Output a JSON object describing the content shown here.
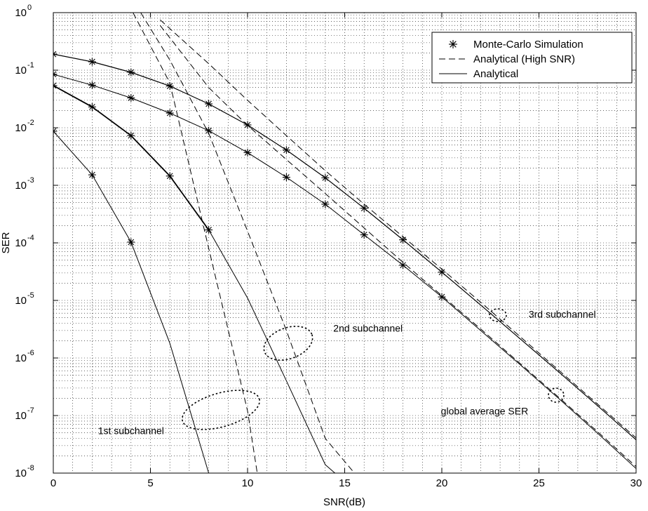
{
  "chart_data": {
    "type": "line",
    "xlabel": "SNR(dB)",
    "ylabel": "SER",
    "xlim": [
      0,
      30
    ],
    "ylim": [
      1e-08,
      1
    ],
    "yscale": "log",
    "grid": true,
    "legend_position": "top-right",
    "x_ticks": [
      0,
      5,
      10,
      15,
      20,
      25,
      30
    ],
    "x_tick_labels": [
      "0",
      "5",
      "10",
      "15",
      "20",
      "25",
      "30"
    ],
    "y_ticks": [
      1,
      0.1,
      0.01,
      0.001,
      0.0001,
      1e-05,
      1e-06,
      1e-07,
      1e-08
    ],
    "y_tick_labels": [
      {
        "base": "10",
        "exp": "0"
      },
      {
        "base": "10",
        "exp": "-1"
      },
      {
        "base": "10",
        "exp": "-2"
      },
      {
        "base": "10",
        "exp": "-3"
      },
      {
        "base": "10",
        "exp": "-4"
      },
      {
        "base": "10",
        "exp": "-5"
      },
      {
        "base": "10",
        "exp": "-6"
      },
      {
        "base": "10",
        "exp": "-7"
      },
      {
        "base": "10",
        "exp": "-8"
      }
    ],
    "legend": [
      {
        "label": "Monte-Carlo Simulation",
        "style": "marker-star"
      },
      {
        "label": "Analytical (High SNR)",
        "style": "dashed"
      },
      {
        "label": "Analytical",
        "style": "solid"
      }
    ],
    "annotations": [
      {
        "text": "1st subchannel",
        "x": 4,
        "y": 5.5e-08
      },
      {
        "text": "2nd subchannel",
        "x": 16.2,
        "y": 3.3e-06
      },
      {
        "text": "3rd subchannel",
        "x": 26.2,
        "y": 5.8e-06
      },
      {
        "text": "global average SER",
        "x": 22.2,
        "y": 1.2e-07
      }
    ],
    "series": [
      {
        "style": "solid",
        "width": 1.2,
        "x": [
          0,
          2,
          4,
          6,
          8,
          10,
          12,
          14,
          16,
          18,
          20,
          22,
          24,
          26,
          28,
          30
        ],
        "y": [
          0.19,
          0.14,
          0.092,
          0.053,
          0.026,
          0.0112,
          0.0041,
          0.00135,
          0.0004,
          0.000113,
          3.1e-05,
          8.3e-06,
          2.2e-06,
          5.8e-07,
          1.5e-07,
          3.8e-08
        ]
      },
      {
        "style": "solid",
        "width": 1,
        "x": [
          0,
          2,
          4,
          6,
          8,
          10,
          12,
          14,
          16,
          18,
          20,
          22,
          24,
          26,
          28,
          30
        ],
        "y": [
          0.085,
          0.055,
          0.033,
          0.018,
          0.0089,
          0.0037,
          0.00138,
          0.00047,
          0.000138,
          4.1e-05,
          1.15e-05,
          3e-06,
          7.8e-07,
          2e-07,
          5e-08,
          1.2e-08
        ]
      },
      {
        "style": "solid",
        "width": 1.8,
        "x": [
          0,
          2,
          4,
          6,
          8
        ],
        "y": [
          0.054,
          0.023,
          0.0073,
          0.00145,
          0.000168
        ]
      },
      {
        "style": "solid",
        "width": 1,
        "x": [
          8,
          10,
          12,
          14,
          14.5
        ],
        "y": [
          0.000168,
          1.1e-05,
          4e-07,
          1.4e-08,
          1e-08
        ]
      },
      {
        "style": "solid",
        "width": 1,
        "x": [
          0,
          2,
          4,
          6,
          8
        ],
        "y": [
          0.0087,
          0.00152,
          0.000103,
          1.8e-06,
          1e-08
        ]
      },
      {
        "style": "dashed",
        "width": 1,
        "x": [
          4.1,
          6,
          8,
          10,
          10.5
        ],
        "y": [
          1,
          0.06,
          8e-05,
          1.2e-07,
          1e-08
        ]
      },
      {
        "style": "dashed",
        "width": 1,
        "x": [
          4.5,
          6,
          8,
          10,
          12,
          14,
          15.5
        ],
        "y": [
          1,
          0.15,
          0.008,
          0.00016,
          3e-06,
          4e-08,
          1e-08
        ]
      },
      {
        "style": "dashed",
        "width": 1,
        "x": [
          5.5,
          8,
          10,
          12,
          14,
          16,
          18,
          20,
          22,
          24,
          26,
          28,
          30
        ],
        "y": [
          0.75,
          0.13,
          0.03,
          0.0073,
          0.0018,
          0.00047,
          0.000128,
          3.5e-05,
          9.3e-06,
          2.4e-06,
          6.2e-07,
          1.6e-07,
          4.1e-08
        ]
      },
      {
        "style": "dashed",
        "width": 1,
        "x": [
          5.5,
          8,
          10,
          12,
          14,
          16,
          18,
          20,
          22,
          24,
          26,
          28,
          30
        ],
        "y": [
          0.6,
          0.05,
          0.011,
          0.0028,
          0.00072,
          0.000182,
          4.6e-05,
          1.21e-05,
          3.2e-06,
          8.2e-07,
          2.1e-07,
          5.3e-08,
          1.3e-08
        ]
      },
      {
        "style": "markers",
        "x": [
          0,
          2,
          4,
          6,
          8,
          10,
          12,
          14,
          16,
          18,
          20
        ],
        "y": [
          0.19,
          0.14,
          0.092,
          0.053,
          0.026,
          0.0112,
          0.0041,
          0.00135,
          0.0004,
          0.000113,
          3.1e-05
        ]
      },
      {
        "style": "markers",
        "x": [
          0,
          2,
          4,
          6,
          8,
          10,
          12,
          14,
          16,
          18,
          20
        ],
        "y": [
          0.085,
          0.055,
          0.033,
          0.018,
          0.0089,
          0.0037,
          0.00138,
          0.00047,
          0.000138,
          4.1e-05,
          1.15e-05
        ]
      },
      {
        "style": "markers",
        "x": [
          0,
          2,
          4,
          6,
          8
        ],
        "y": [
          0.054,
          0.023,
          0.0073,
          0.00145,
          0.000168
        ]
      },
      {
        "style": "markers",
        "x": [
          0,
          2,
          4
        ],
        "y": [
          0.0087,
          0.00152,
          0.000103
        ]
      }
    ]
  }
}
